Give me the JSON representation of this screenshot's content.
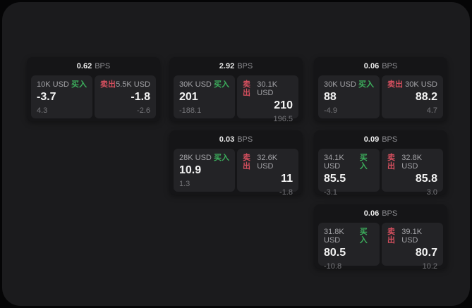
{
  "labels": {
    "bps_unit": "BPS",
    "buy": "买入",
    "sell": "卖出"
  },
  "colors": {
    "screen_bg": "#1b1b1d",
    "card_bg": "#151517",
    "panel_bg": "#232326",
    "buy_green": "#3cae5c",
    "sell_red": "#d44f5e"
  },
  "cards": [
    {
      "bps": "0.62",
      "buy": {
        "amount": "10K USD",
        "value": "-3.7",
        "sub": "4.3"
      },
      "sell": {
        "amount": "5.5K USD",
        "value": "-1.8",
        "sub": "-2.6"
      }
    },
    {
      "bps": "2.92",
      "buy": {
        "amount": "30K USD",
        "value": "201",
        "sub": "-188.1"
      },
      "sell": {
        "amount": "30.1K USD",
        "value": "210",
        "sub": "196.5"
      }
    },
    {
      "bps": "0.06",
      "buy": {
        "amount": "30K USD",
        "value": "88",
        "sub": "-4.9"
      },
      "sell": {
        "amount": "30K USD",
        "value": "88.2",
        "sub": "4.7"
      }
    },
    {
      "bps": "0.03",
      "buy": {
        "amount": "28K USD",
        "value": "10.9",
        "sub": "1.3"
      },
      "sell": {
        "amount": "32.6K USD",
        "value": "11",
        "sub": "-1.8"
      }
    },
    {
      "bps": "0.09",
      "buy": {
        "amount": "34.1K USD",
        "value": "85.5",
        "sub": "-3.1"
      },
      "sell": {
        "amount": "32.8K USD",
        "value": "85.8",
        "sub": "3.0"
      }
    },
    {
      "bps": "0.06",
      "buy": {
        "amount": "31.8K USD",
        "value": "80.5",
        "sub": "-10.8"
      },
      "sell": {
        "amount": "39.1K USD",
        "value": "80.7",
        "sub": "10.2"
      }
    }
  ]
}
